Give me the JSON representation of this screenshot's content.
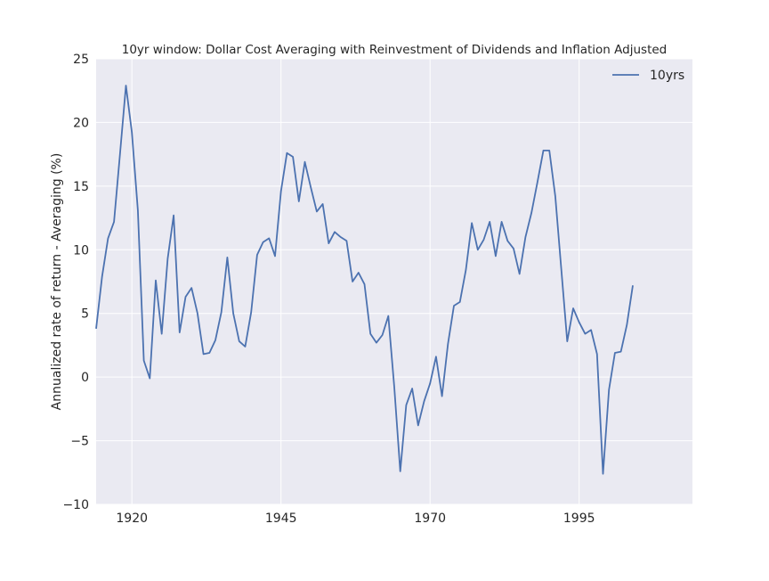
{
  "chart_data": {
    "type": "line",
    "title": "10yr window: Dollar Cost Averaging with Reinvestment of Dividends and Inflation Adjusted",
    "xlabel": "",
    "ylabel": "Annualized rate of return - Averaging (%)",
    "xlim": [
      1914,
      2014
    ],
    "ylim": [
      -10,
      25
    ],
    "xticks": [
      1920,
      1945,
      1970,
      1995
    ],
    "yticks": [
      -10,
      -5,
      0,
      5,
      10,
      15,
      20,
      25
    ],
    "ytick_labels": [
      "−10",
      "−5",
      "0",
      "5",
      "10",
      "15",
      "20",
      "25"
    ],
    "grid": true,
    "legend_position": "top-right",
    "series": [
      {
        "name": "10yrs",
        "color": "#4c72b0",
        "x_start": 1914,
        "values": [
          3.8,
          7.9,
          10.9,
          12.2,
          17.5,
          22.9,
          19.2,
          13.1,
          1.3,
          -0.1,
          7.6,
          3.4,
          9.3,
          12.7,
          3.5,
          6.3,
          7.0,
          5.0,
          1.8,
          1.9,
          2.9,
          5.1,
          9.4,
          5.0,
          2.8,
          2.4,
          5.1,
          9.6,
          10.6,
          10.9,
          9.5,
          14.6,
          17.6,
          17.3,
          13.8,
          16.9,
          14.9,
          13.0,
          13.6,
          10.5,
          11.4,
          11.0,
          10.7,
          7.5,
          8.2,
          7.3,
          3.4,
          2.7,
          3.3,
          4.8,
          -0.8,
          -7.4,
          -2.2,
          -0.9,
          -3.8,
          -1.9,
          -0.5,
          1.6,
          -1.5,
          2.6,
          5.6,
          5.9,
          8.4,
          12.1,
          10.0,
          10.8,
          12.2,
          9.5,
          12.2,
          10.7,
          10.1,
          8.1,
          11.0,
          12.9,
          15.3,
          17.8,
          17.8,
          14.2,
          8.5,
          2.8,
          5.4,
          4.3,
          3.4,
          3.7,
          1.8,
          -7.6,
          -1.0,
          1.9,
          2.0,
          4.1,
          7.2
        ]
      }
    ]
  }
}
